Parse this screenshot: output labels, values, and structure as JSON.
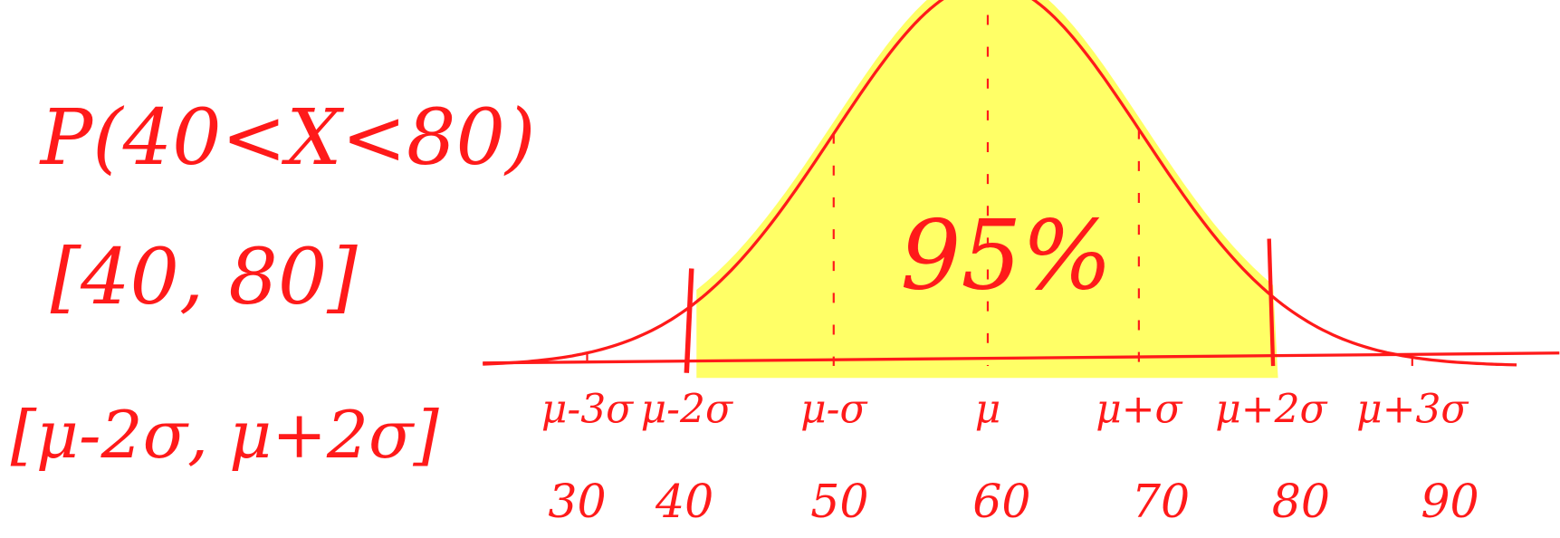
{
  "probability": "P(40<X<80)",
  "interval": "[40, 80]",
  "sigma_interval": "[μ-2σ, μ+2σ]",
  "area_label": "95%",
  "sigma_labels": [
    "μ-3σ",
    "μ-2σ",
    "μ-σ",
    "μ",
    "μ+σ",
    "μ+2σ",
    "μ+3σ"
  ],
  "axis_values": [
    30,
    40,
    50,
    60,
    70,
    80,
    90
  ]
}
